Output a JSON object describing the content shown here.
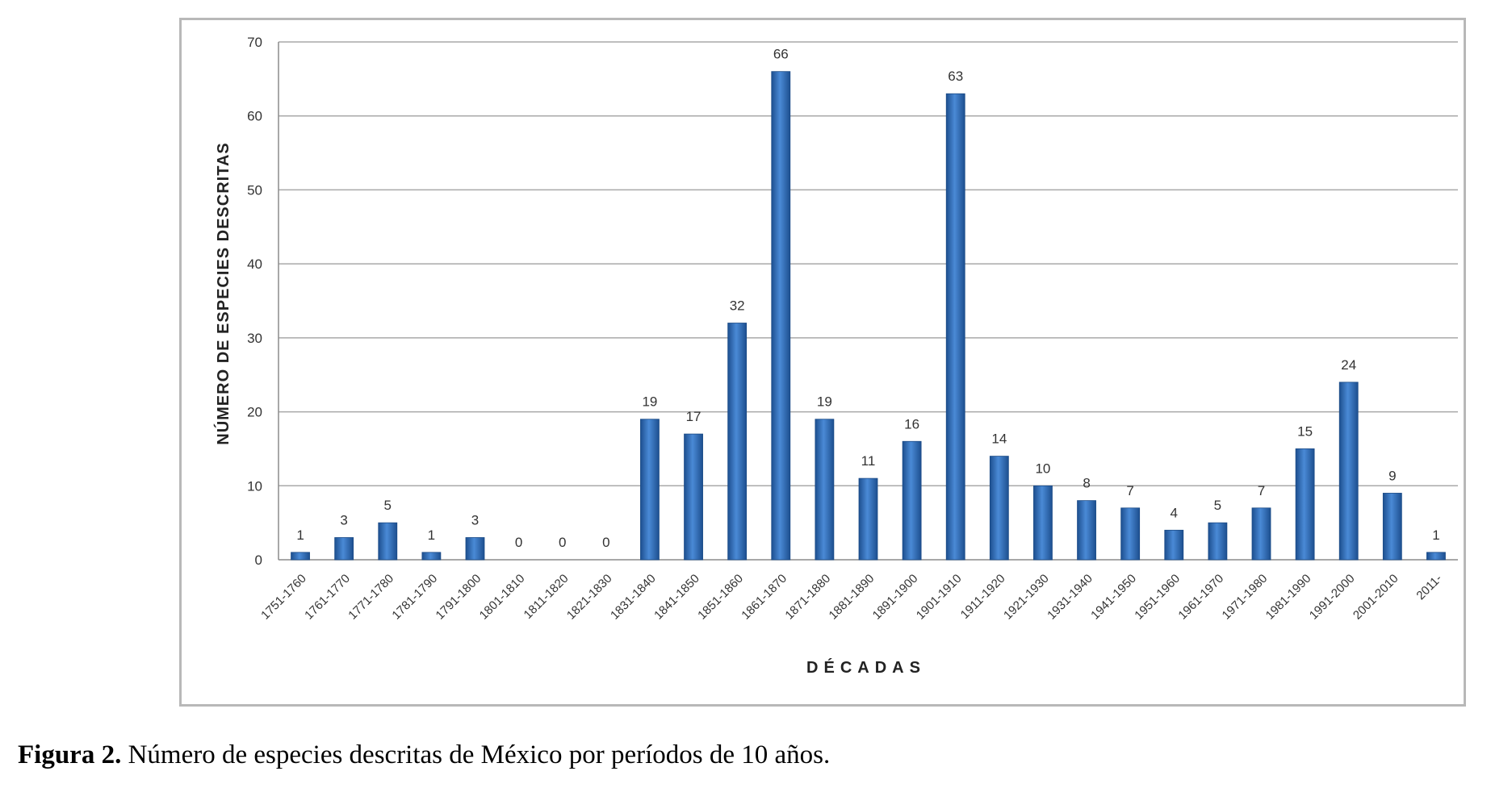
{
  "chart_data": {
    "type": "bar",
    "xlabel": "DÉCADAS",
    "ylabel": "NÚMERO DE ESPECIES DESCRITAS",
    "ylim": [
      0,
      70
    ],
    "yticks": [
      0,
      10,
      20,
      30,
      40,
      50,
      60,
      70
    ],
    "grid": true,
    "legend": "none",
    "bar_color": "#2e6bb6",
    "categories": [
      "1751-1760",
      "1761-1770",
      "1771-1780",
      "1781-1790",
      "1791-1800",
      "1801-1810",
      "1811-1820",
      "1821-1830",
      "1831-1840",
      "1841-1850",
      "1851-1860",
      "1861-1870",
      "1871-1880",
      "1881-1890",
      "1891-1900",
      "1901-1910",
      "1911-1920",
      "1921-1930",
      "1931-1940",
      "1941-1950",
      "1951-1960",
      "1961-1970",
      "1971-1980",
      "1981-1990",
      "1991-2000",
      "2001-2010",
      "2011-"
    ],
    "values": [
      1,
      3,
      5,
      1,
      3,
      0,
      0,
      0,
      19,
      17,
      32,
      66,
      19,
      11,
      16,
      63,
      14,
      10,
      8,
      7,
      4,
      5,
      7,
      15,
      24,
      9,
      1
    ]
  },
  "caption": {
    "label": "Figura 2.",
    "text": " Número de especies descritas de México por períodos de 10 años."
  }
}
